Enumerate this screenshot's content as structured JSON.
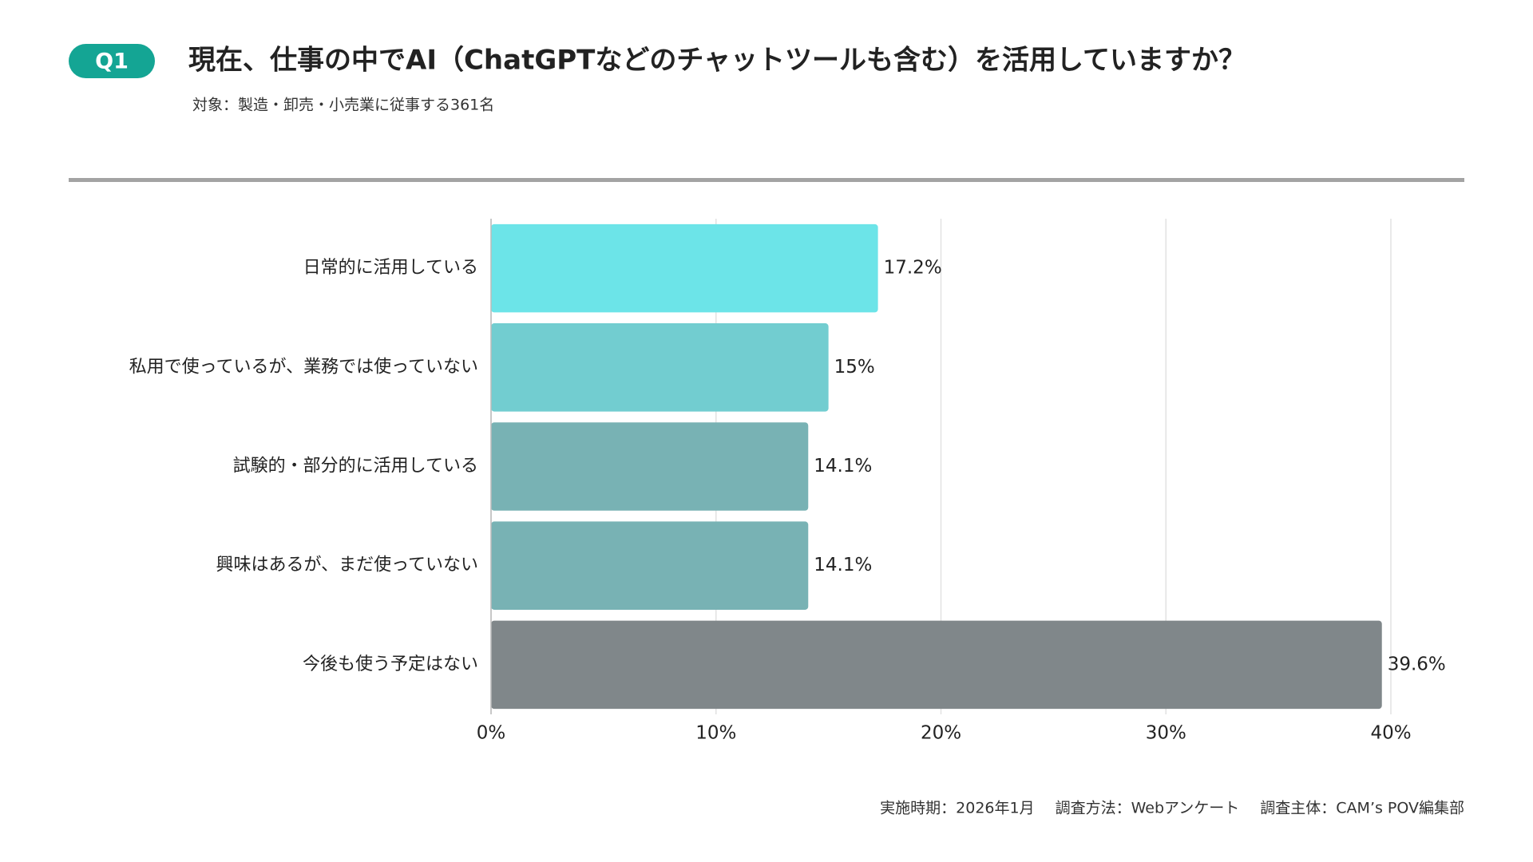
{
  "chart_data": {
    "type": "bar",
    "orientation": "horizontal",
    "badge": "Q1",
    "title": "現在、仕事の中でAI（ChatGPTなどのチャットツールも含む）を活用していますか？",
    "subtitle": "対象：製造・卸売・小売業に従事する361名",
    "categories": [
      "日常的に活用している",
      "私用で使っているが、業務では使っていない",
      "試験的・部分的に活用している",
      "興味はあるが、まだ使っていない",
      "今後も使う予定はない"
    ],
    "values": [
      17.2,
      15,
      14.1,
      14.1,
      39.6
    ],
    "value_labels": [
      "17.2%",
      "15%",
      "14.1%",
      "14.1%",
      "39.6%"
    ],
    "colors": [
      "#6ce4e8",
      "#72cdd0",
      "#78b2b4",
      "#78b2b4",
      "#80878a"
    ],
    "xlim": [
      0,
      40
    ],
    "xticks": [
      {
        "value": 0,
        "label": "0%"
      },
      {
        "value": 10,
        "label": "10%"
      },
      {
        "value": 20,
        "label": "20%"
      },
      {
        "value": 30,
        "label": "30%"
      },
      {
        "value": 40,
        "label": "40%"
      }
    ],
    "grid": true,
    "notes": [
      "実施時期：2026年1月",
      "調査方法：Webアンケート",
      "調査主体：CAM’s POV編集部"
    ]
  }
}
